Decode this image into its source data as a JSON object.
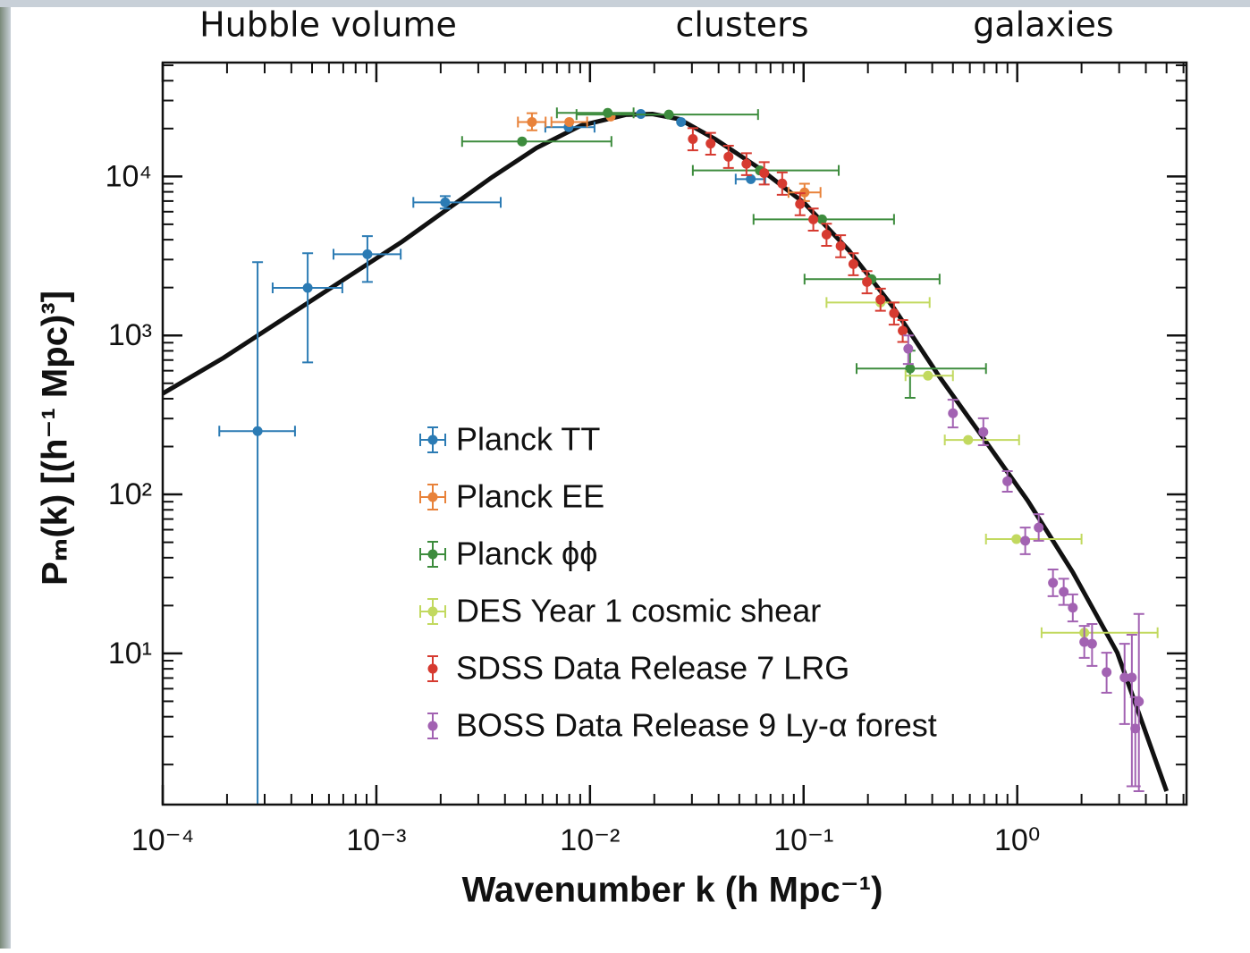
{
  "chart_data": {
    "type": "scatter",
    "annotations": [
      "Hubble volume",
      "clusters",
      "galaxies"
    ],
    "xlabel": "Wavenumber k (h Mpc⁻¹)",
    "ylabel": "Pₘ(k) [(h⁻¹ Mpc)³]",
    "xscale": "log",
    "yscale": "log",
    "xlim": [
      0.0001,
      6.2
    ],
    "ylim": [
      1.12,
      52000
    ],
    "xticks": [
      {
        "value": 0.0001,
        "label": "10⁻⁴"
      },
      {
        "value": 0.001,
        "label": "10⁻³"
      },
      {
        "value": 0.01,
        "label": "10⁻²"
      },
      {
        "value": 0.1,
        "label": "10⁻¹"
      },
      {
        "value": 1,
        "label": "10⁰"
      }
    ],
    "yticks": [
      {
        "value": 10,
        "label": "10¹"
      },
      {
        "value": 100,
        "label": "10²"
      },
      {
        "value": 1000,
        "label": "10³"
      },
      {
        "value": 10000,
        "label": "10⁴"
      }
    ],
    "xminor": [
      0.0002,
      0.0003,
      0.0004,
      0.0005,
      0.0006,
      0.0007,
      0.0008,
      0.0009,
      0.002,
      0.003,
      0.004,
      0.005,
      0.006,
      0.007,
      0.008,
      0.009,
      0.02,
      0.03,
      0.04,
      0.05,
      0.06,
      0.07,
      0.08,
      0.09,
      0.2,
      0.3,
      0.4,
      0.5,
      0.6,
      0.7,
      0.8,
      0.9,
      2,
      3,
      4,
      5,
      6
    ],
    "yminor": [
      2,
      3,
      4,
      5,
      6,
      7,
      8,
      9,
      20,
      30,
      40,
      50,
      60,
      70,
      80,
      90,
      200,
      300,
      400,
      500,
      600,
      700,
      800,
      900,
      2000,
      3000,
      4000,
      5000,
      6000,
      7000,
      8000,
      9000,
      20000,
      30000,
      40000,
      50000
    ],
    "legend": "lower left",
    "series": [
      {
        "name": "Planck TT",
        "color": "#2b7bb4",
        "x": [
          0.000278,
          0.000477,
          0.000908,
          0.0021,
          0.00794,
          0.0173,
          0.0267,
          0.0566
        ],
        "values": [
          250,
          1990,
          3240,
          6870,
          20400,
          24700,
          22000,
          9620
        ],
        "x_low": [
          0.000184,
          0.000327,
          0.00063,
          0.00149,
          0.00618,
          null,
          null,
          0.0481
        ],
        "x_high": [
          0.000416,
          0.000693,
          0.0013,
          0.00382,
          0.0105,
          null,
          null,
          0.0661
        ],
        "y_low": [
          1,
          677,
          2170,
          6280,
          null,
          null,
          null,
          null
        ],
        "y_high": [
          2890,
          3290,
          4210,
          7520,
          null,
          null,
          null,
          null
        ]
      },
      {
        "name": "Planck EE",
        "color": "#e8823a",
        "x": [
          0.00535,
          0.008,
          0.0125,
          0.101
        ],
        "values": [
          22000,
          22000,
          23800,
          7930
        ],
        "x_low": [
          0.0046,
          0.0066,
          null,
          0.085
        ],
        "x_high": [
          0.0062,
          0.0097,
          null,
          0.12
        ],
        "y_low": [
          19500,
          null,
          null,
          7000
        ],
        "y_high": [
          25000,
          null,
          null,
          9000
        ]
      },
      {
        "name": "Planck ϕϕ",
        "color": "#3d8c3d",
        "x": [
          0.00481,
          0.0121,
          0.0234,
          0.0624,
          0.122,
          0.208,
          0.315
        ],
        "values": [
          16600,
          25100,
          24500,
          10900,
          5370,
          2260,
          619
        ],
        "x_low": [
          0.00252,
          0.007,
          0.00865,
          0.0303,
          0.0583,
          0.101,
          0.177
        ],
        "x_high": [
          0.0126,
          0.016,
          0.0612,
          0.146,
          0.265,
          0.433,
          0.714
        ],
        "y_low": [
          null,
          null,
          null,
          null,
          null,
          null,
          405
        ],
        "y_high": [
          null,
          null,
          null,
          null,
          null,
          null,
          802
        ]
      },
      {
        "name": "DES Year 1 cosmic shear",
        "color": "#c2d95f",
        "x": [
          0.229,
          0.382,
          0.589,
          0.991,
          2.06
        ],
        "values": [
          1610,
          558,
          220,
          52.4,
          13.5
        ],
        "x_low": [
          0.128,
          0.3,
          0.458,
          0.714,
          1.3
        ],
        "x_high": [
          0.389,
          0.5,
          1.02,
          2.0,
          4.54
        ]
      },
      {
        "name": "SDSS Data Release 7 LRG",
        "color": "#d63a30",
        "x": [
          0.0303,
          0.0367,
          0.0445,
          0.054,
          0.0654,
          0.0794,
          0.0962,
          0.111,
          0.128,
          0.149,
          0.171,
          0.198,
          0.229,
          0.265,
          0.291
        ],
        "values": [
          17200,
          16100,
          13300,
          12000,
          10500,
          9020,
          6700,
          5370,
          4310,
          3650,
          2810,
          2170,
          1680,
          1380,
          1070
        ],
        "y_low": [
          14600,
          13700,
          11300,
          10200,
          8900,
          7670,
          5700,
          4560,
          3660,
          3100,
          2390,
          1840,
          1430,
          1170,
          910
        ],
        "y_high": [
          20100,
          18800,
          15600,
          14000,
          12300,
          10600,
          7840,
          6280,
          5040,
          4270,
          3290,
          2540,
          1970,
          1610,
          1250
        ]
      },
      {
        "name": "BOSS Data Release 9 Ly-α forest",
        "color": "#a262b2",
        "x": [
          0.309,
          0.5,
          0.694,
          0.899,
          1.09,
          1.26,
          1.47,
          1.65,
          1.82,
          2.06,
          2.24,
          2.62,
          3.18,
          3.44,
          3.71,
          3.57
        ],
        "values": [
          824,
          324,
          247,
          121,
          51.1,
          61.9,
          27.8,
          24.4,
          19.4,
          11.8,
          11.5,
          7.62,
          7.05,
          7.05,
          4.98,
          3.37
        ],
        "y_low": [
          661,
          264,
          204,
          104,
          42.1,
          51.1,
          22.9,
          20.2,
          15.9,
          9.38,
          8.34,
          5.66,
          3.6,
          1.46,
          1.36,
          1.46
        ],
        "y_high": [
          1000,
          394,
          301,
          140,
          61.9,
          75.2,
          33.7,
          29.5,
          23.5,
          14.9,
          15.3,
          10.1,
          11.5,
          13.1,
          17.7,
          5.31
        ]
      }
    ],
    "curve": {
      "type": "line",
      "color": "#111111",
      "x": [
        0.0001,
        0.000193,
        0.000505,
        0.00132,
        0.00347,
        0.00561,
        0.00908,
        0.0147,
        0.0196,
        0.0262,
        0.0385,
        0.0624,
        0.101,
        0.163,
        0.265,
        0.429,
        0.694,
        1.12,
        1.82,
        2.94,
        5.0
      ],
      "values": [
        431,
        724,
        1680,
        3890,
        9870,
        15100,
        20900,
        24400,
        24700,
        22900,
        17200,
        11200,
        6780,
        3420,
        1480,
        558,
        226,
        91.4,
        32.4,
        10.1,
        1.36
      ]
    }
  }
}
